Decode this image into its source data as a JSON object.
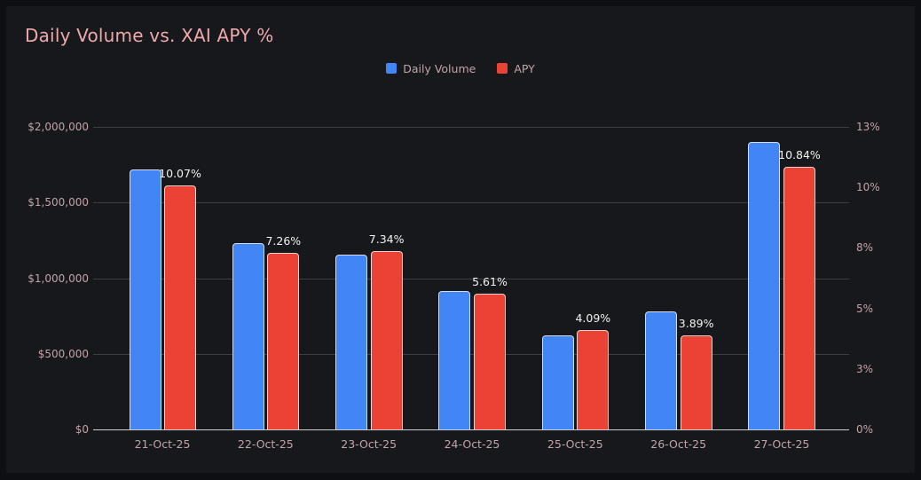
{
  "page": {
    "title": "Daily Volume vs. XAI APY %"
  },
  "legend": {
    "items": [
      {
        "label": "Daily Volume",
        "color": "#4285f4"
      },
      {
        "label": "APY",
        "color": "#ea4335"
      }
    ]
  },
  "colors": {
    "background_page": "#0e0f12",
    "background_panel": "#17181c",
    "title_text": "#eda9ac",
    "axis_text": "#c2a3a8",
    "gridline": "#3c3e44",
    "axis_line": "#cfd0d3",
    "data_label_text": "#f2f2f2",
    "volume_bar": "#4285f4",
    "apy_bar": "#ea4335"
  },
  "chart_data": {
    "type": "bar",
    "title": "Daily Volume vs. XAI APY %",
    "categories": [
      "21-Oct-25",
      "22-Oct-25",
      "23-Oct-25",
      "24-Oct-25",
      "25-Oct-25",
      "26-Oct-25",
      "27-Oct-25"
    ],
    "series": [
      {
        "name": "Daily Volume",
        "axis": "left",
        "color": "#4285f4",
        "values": [
          1720000,
          1230000,
          1155000,
          915000,
          620000,
          780000,
          1900000
        ]
      },
      {
        "name": "APY",
        "axis": "right",
        "color": "#ea4335",
        "values": [
          10.07,
          7.26,
          7.34,
          5.61,
          4.09,
          3.89,
          10.84
        ],
        "data_labels": [
          "10.07%",
          "7.26%",
          "7.34%",
          "5.61%",
          "4.09%",
          "3.89%",
          "10.84%"
        ]
      }
    ],
    "left_axis": {
      "tick_labels": [
        "$2,000,000",
        "$1,500,000",
        "$1,000,000",
        "$500,000",
        "$0"
      ],
      "range": [
        0,
        2000000
      ]
    },
    "right_axis": {
      "tick_labels": [
        "13%",
        "10%",
        "8%",
        "5%",
        "3%",
        "0%"
      ],
      "range_effective": [
        0,
        12.47
      ]
    },
    "legend_position": "top-center",
    "grid": true
  }
}
